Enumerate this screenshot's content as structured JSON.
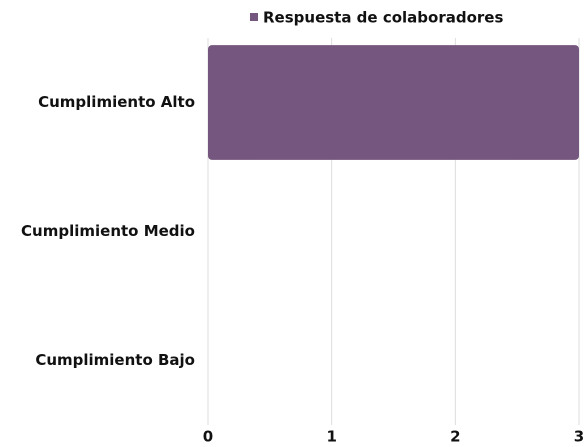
{
  "chart_data": {
    "type": "bar",
    "horizontal": true,
    "categories": [
      "Cumplimiento Alto",
      "Cumplimiento Medio",
      "Cumplimiento Bajo"
    ],
    "series": [
      {
        "name": "Respuesta de colaboradores",
        "color": "#74567f",
        "values": [
          3,
          0,
          0
        ]
      }
    ],
    "xlim": [
      0,
      3
    ],
    "xticks": [
      0,
      1,
      2,
      3
    ],
    "grid": true,
    "legend": "top"
  }
}
